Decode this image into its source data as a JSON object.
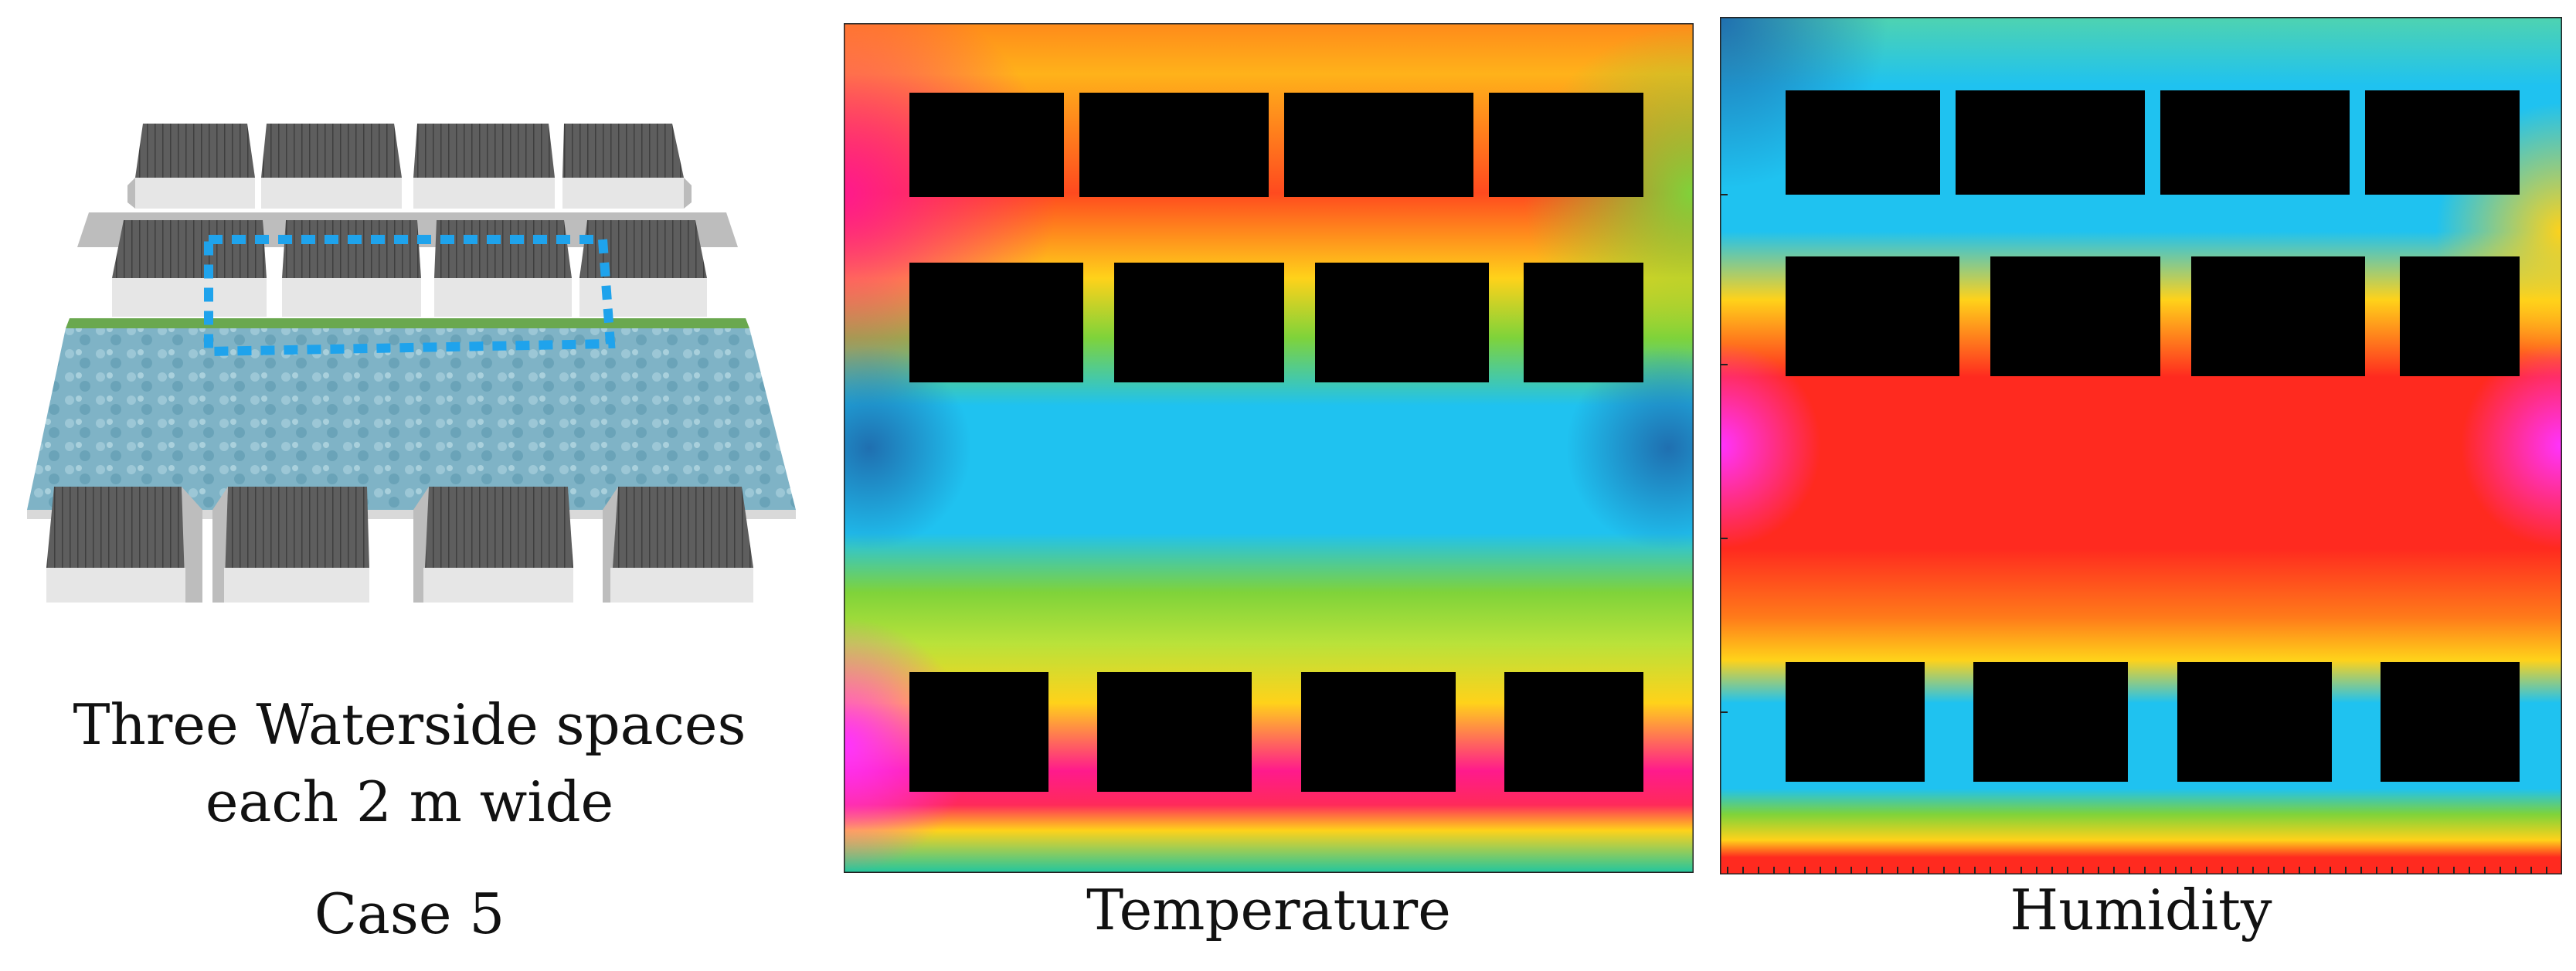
{
  "model": {
    "description_line1": "Three Waterside spaces",
    "description_line2": "each 2 m wide",
    "case_label": "Case 5",
    "colors": {
      "roof": "#5a5a5a",
      "wall": "#e0e0e0",
      "water": "#86b8c9",
      "grass": "#6aa84f",
      "path": "#1fa3ec"
    }
  },
  "temperature": {
    "label": "Temperature",
    "colors": {
      "hot": "#ff1a8c",
      "warm": "#ff3b1f",
      "mild": "#ffd21a",
      "neutral": "#7fd33a",
      "cool": "#1fc2f0",
      "cold": "#1f7fd0",
      "building": "#000000"
    }
  },
  "humidity": {
    "label": "Humidity",
    "colors": {
      "high": "#ff1a8c",
      "upper": "#ff3b1f",
      "mid": "#ffd21a",
      "lower": "#7fd33a",
      "low": "#1fc2f0",
      "lowest": "#1f7fd0",
      "building": "#000000"
    }
  }
}
